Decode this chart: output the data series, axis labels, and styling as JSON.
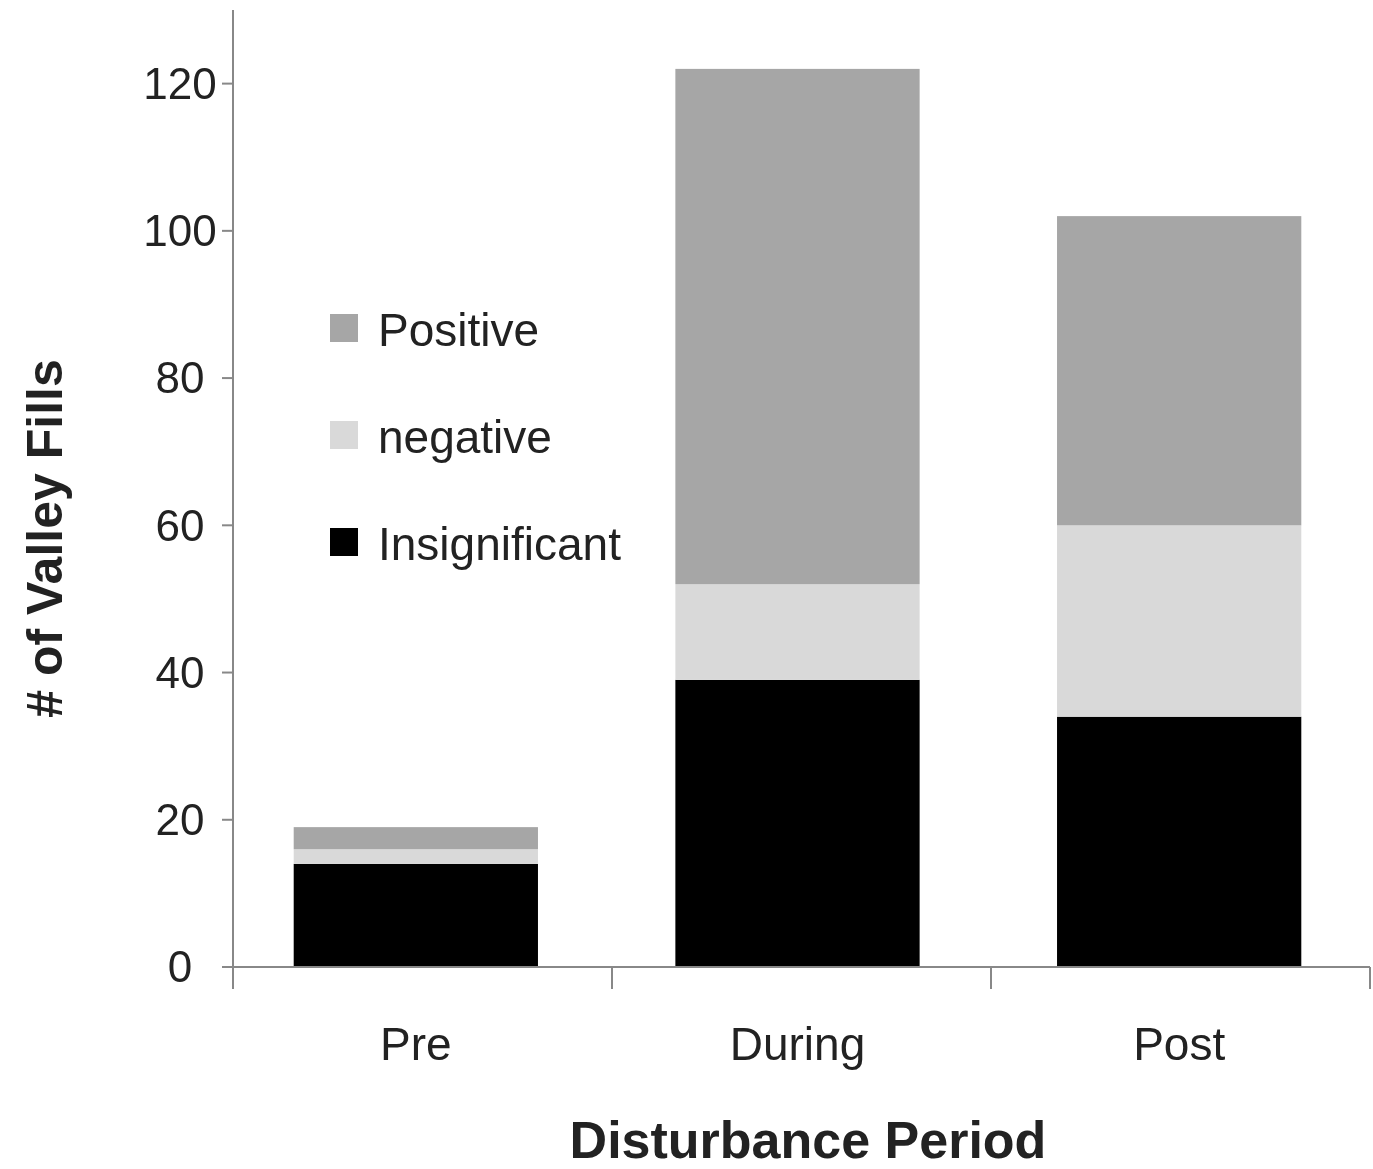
{
  "chart_data": {
    "type": "bar",
    "stacked": true,
    "xlabel": "Disturbance Period",
    "ylabel": "# of Valley Fills",
    "categories": [
      "Pre",
      "During",
      "Post"
    ],
    "series": [
      {
        "name": "Insignificant",
        "color": "#000000",
        "values": [
          14,
          39,
          34
        ]
      },
      {
        "name": "negative",
        "color": "#d9d9d9",
        "values": [
          2,
          13,
          26
        ]
      },
      {
        "name": "Positive",
        "color": "#a6a6a6",
        "values": [
          3,
          70,
          42
        ]
      }
    ],
    "ylim": [
      0,
      130
    ],
    "yticks": [
      0,
      20,
      40,
      60,
      80,
      100,
      120
    ],
    "grid": false,
    "legend": "top left"
  }
}
